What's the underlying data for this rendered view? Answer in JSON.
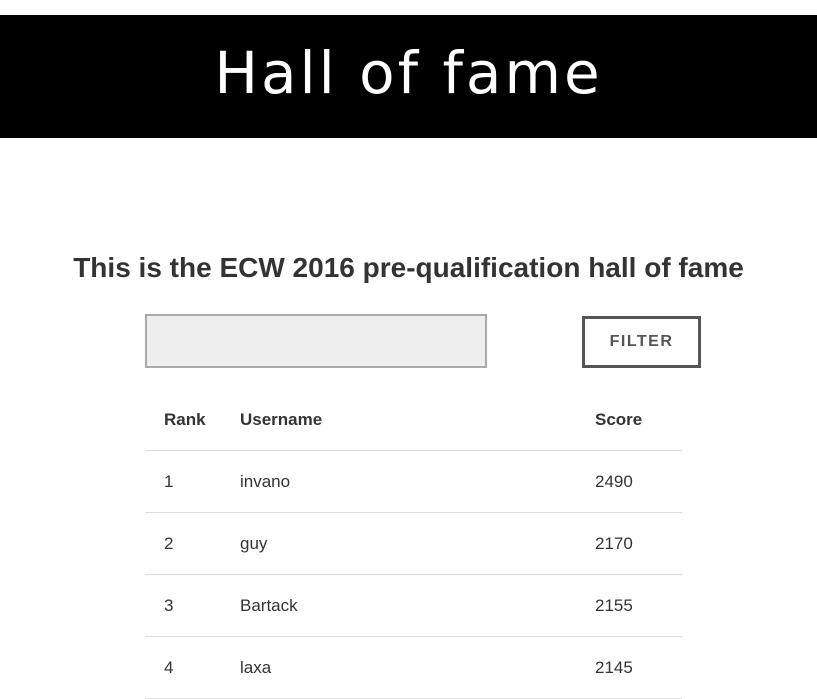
{
  "header": {
    "title": "Hall of fame"
  },
  "intro": {
    "subtitle": "This is the ECW 2016 pre-qualification hall of fame"
  },
  "filter": {
    "input_value": "",
    "input_placeholder": "",
    "button_label": "FILTER"
  },
  "table": {
    "columns": [
      "Rank",
      "Username",
      "Score"
    ],
    "rows": [
      {
        "rank": "1",
        "username": "invano",
        "score": "2490"
      },
      {
        "rank": "2",
        "username": "guy",
        "score": "2170"
      },
      {
        "rank": "3",
        "username": "Bartack",
        "score": "2155"
      },
      {
        "rank": "4",
        "username": "laxa",
        "score": "2145"
      }
    ]
  },
  "colors": {
    "header_background": "#000000",
    "header_text": "#ffffff",
    "body_text": "#333333",
    "input_background": "#eeeeee",
    "button_border": "#555555"
  }
}
